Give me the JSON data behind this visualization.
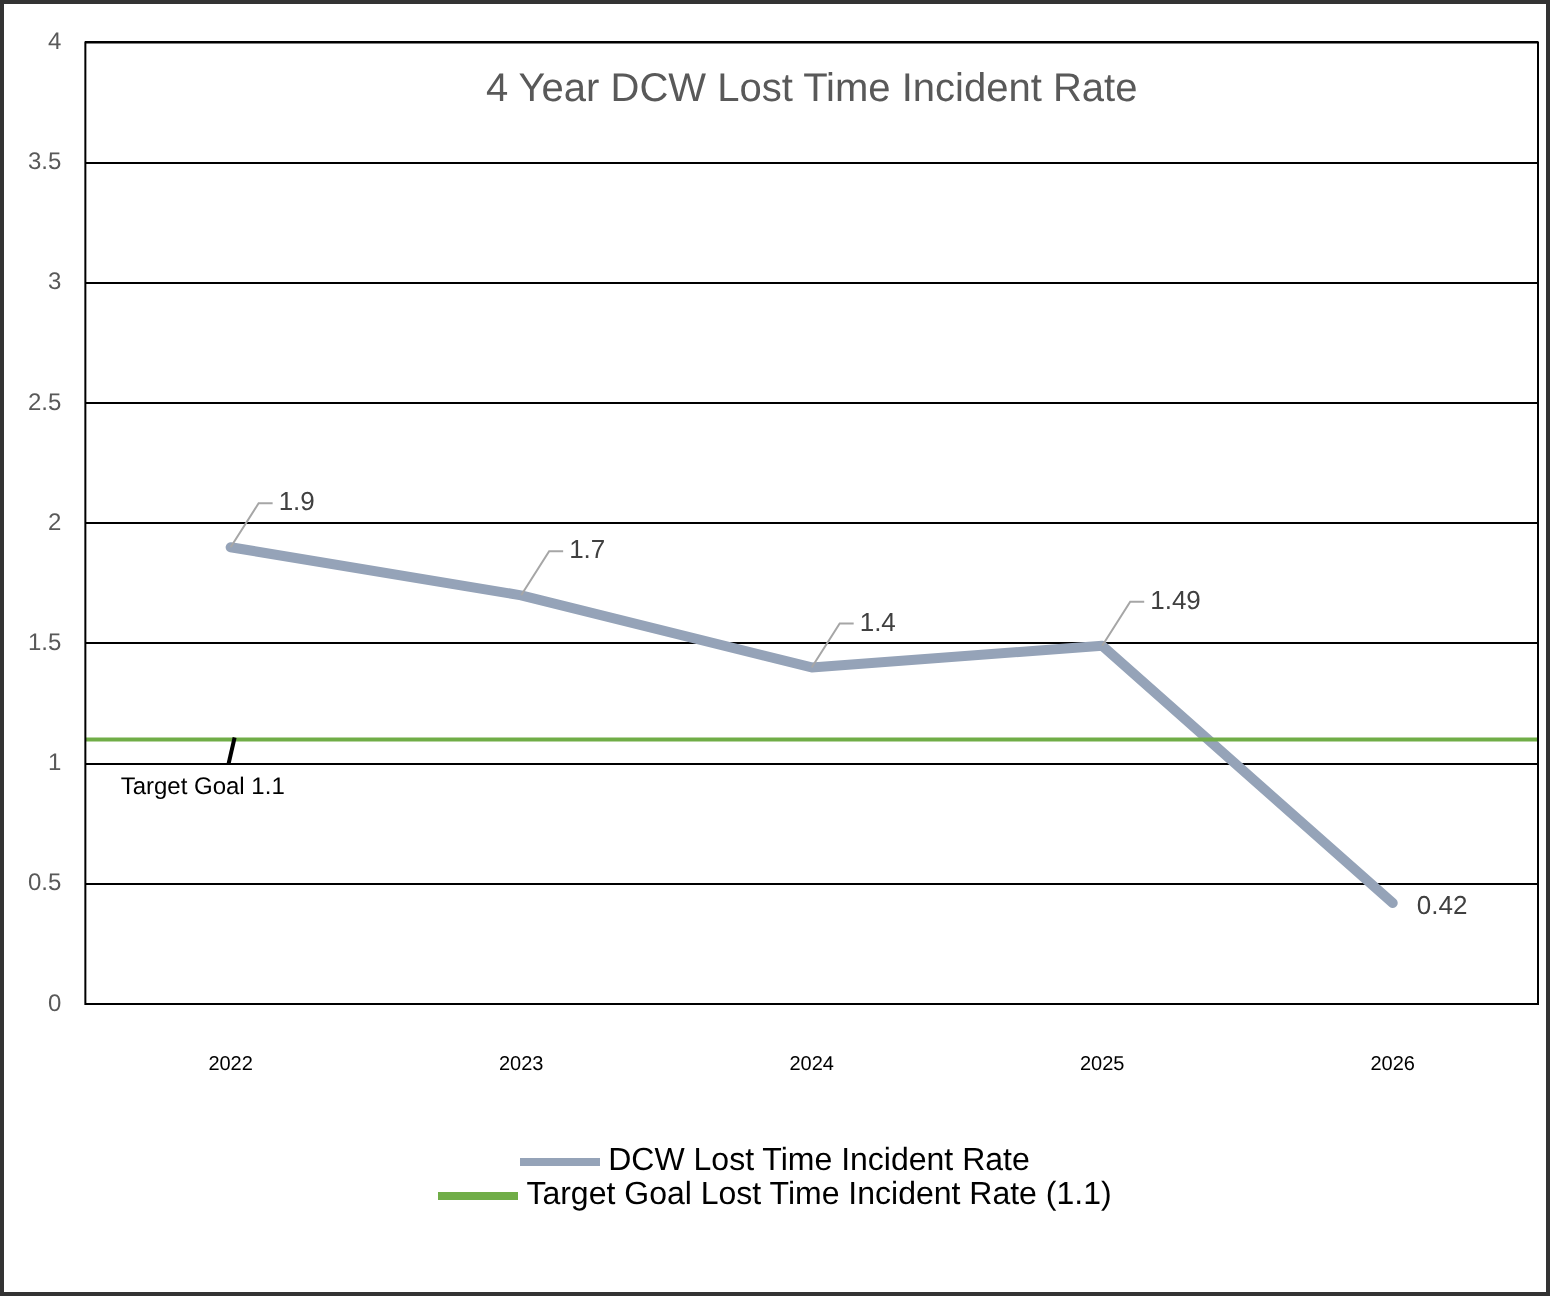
{
  "chart_data": {
    "type": "line",
    "title": "4 Year DCW Lost Time Incident Rate",
    "categories": [
      "2022",
      "2023",
      "2024",
      "2025",
      "2026"
    ],
    "series": [
      {
        "name": "DCW Lost Time Incident Rate",
        "color": "#95a3b8",
        "values": [
          1.9,
          1.7,
          1.4,
          1.49,
          0.42
        ]
      }
    ],
    "ylim": [
      0,
      4
    ],
    "yticks": [
      0,
      0.5,
      1,
      1.5,
      2,
      2.5,
      3,
      3.5,
      4
    ],
    "grid": "y",
    "legend": "bottom",
    "data_labels": true,
    "marker": "none",
    "line_style": "solid",
    "ref_lines": [
      {
        "axis": "y",
        "value": 1.1,
        "label": "Target Goal Lost Time Incident Rate (1.1)",
        "color": "#70ad47",
        "line_style": "solid"
      }
    ],
    "annotations": [
      {
        "text": "Target Goal 1.1",
        "x": "2022",
        "y": 1.1
      }
    ]
  }
}
